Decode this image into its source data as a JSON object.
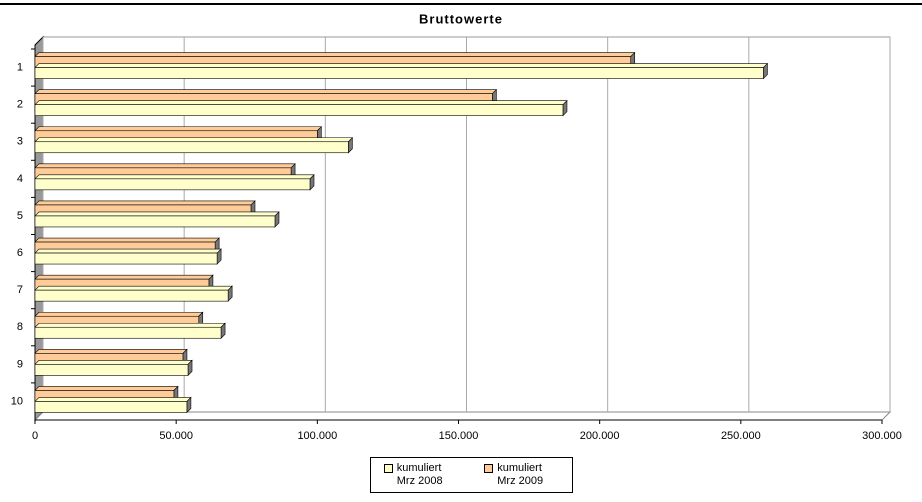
{
  "chart_data": {
    "type": "bar",
    "orientation": "horizontal",
    "title": "Bruttowerte",
    "categories": [
      "1",
      "2",
      "3",
      "4",
      "5",
      "6",
      "7",
      "8",
      "9",
      "10"
    ],
    "series": [
      {
        "name": "kumuliert Mrz 2009",
        "color": "#ffcc99",
        "values": [
          211000,
          162000,
          100000,
          90700,
          76500,
          63800,
          61600,
          58000,
          52400,
          49200
        ]
      },
      {
        "name": "kumuliert Mrz 2008",
        "color": "#ffffcc",
        "values": [
          258000,
          187000,
          111000,
          97400,
          85000,
          64500,
          68400,
          65900,
          54200,
          53800
        ]
      }
    ],
    "xlim": [
      0,
      300000
    ],
    "xticks": [
      0,
      {
        "value": 50000,
        "label": "50.000"
      },
      {
        "value": 100000,
        "label": "100.000"
      },
      {
        "value": 150000,
        "label": "150.000"
      },
      {
        "value": 200000,
        "label": "200.000"
      },
      {
        "value": 250000,
        "label": "250.000"
      },
      {
        "value": 300000,
        "label": "300.000"
      }
    ],
    "grid": true
  }
}
